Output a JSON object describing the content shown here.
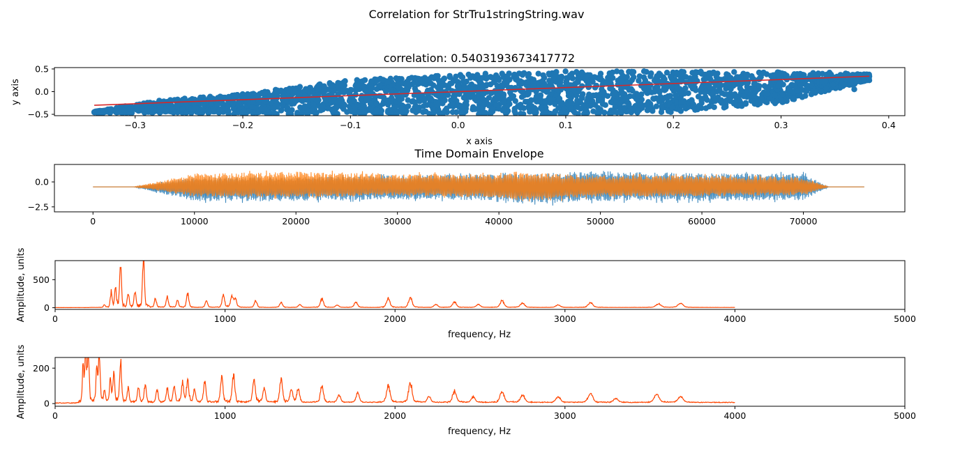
{
  "figure": {
    "title": "Correlation for StrTru1stringString.wav"
  },
  "chart_data": [
    {
      "type": "scatter",
      "title": "correlation: 0.5403193673417772",
      "xlabel": "x axis",
      "ylabel": "y axis",
      "xlim": [
        -0.375,
        0.415
      ],
      "ylim": [
        -0.53,
        0.53
      ],
      "xticks": [
        -0.3,
        -0.2,
        -0.1,
        0.0,
        0.1,
        0.2,
        0.3,
        0.4
      ],
      "xtick_labels": [
        "−0.3",
        "−0.2",
        "−0.1",
        "0.0",
        "0.1",
        "0.2",
        "0.3",
        "0.4"
      ],
      "yticks": [
        -0.5,
        0.0,
        0.5
      ],
      "ytick_labels": [
        "−0.5",
        "0.0",
        "0.5"
      ],
      "point_color": "#1f77b4",
      "fit_color": "#d62728",
      "fit_line": {
        "x": [
          -0.338,
          0.382
        ],
        "y": [
          -0.3,
          0.34
        ]
      },
      "cloud_band": {
        "x": [
          -0.338,
          -0.28,
          -0.2,
          -0.1,
          0.0,
          0.1,
          0.2,
          0.3,
          0.382
        ],
        "lo": [
          -0.47,
          -0.47,
          -0.5,
          -0.5,
          -0.5,
          -0.5,
          -0.45,
          -0.25,
          0.25
        ],
        "hi": [
          -0.44,
          -0.2,
          -0.05,
          0.25,
          0.38,
          0.45,
          0.45,
          0.43,
          0.38
        ]
      },
      "outliers": [
        [
          -0.338,
          -0.45
        ],
        [
          -0.33,
          -0.45
        ],
        [
          -0.31,
          -0.42
        ],
        [
          -0.305,
          -0.38
        ],
        [
          0.31,
          0.15
        ],
        [
          0.32,
          0.32
        ],
        [
          0.33,
          0.38
        ],
        [
          0.345,
          0.42
        ],
        [
          0.36,
          0.4
        ],
        [
          0.365,
          0.2
        ],
        [
          0.368,
          0.05
        ],
        [
          0.382,
          0.34
        ],
        [
          0.338,
          0.22
        ],
        [
          0.3,
          0.4
        ]
      ]
    },
    {
      "type": "line",
      "title": "Time Domain Envelope",
      "xlabel": "",
      "ylabel": "",
      "xlim": [
        -3800,
        80000
      ],
      "ylim": [
        -3.0,
        1.75
      ],
      "xticks": [
        0,
        10000,
        20000,
        30000,
        40000,
        50000,
        60000,
        70000
      ],
      "xtick_labels": [
        "0",
        "10000",
        "20000",
        "30000",
        "40000",
        "50000",
        "60000",
        "70000"
      ],
      "yticks": [
        0.0,
        -2.5
      ],
      "ytick_labels": [
        "0.0",
        "−2.5"
      ],
      "signal_start": 4000,
      "signal_end": 72500,
      "x_end": 76000,
      "baseline": -0.5,
      "series": [
        {
          "color": "#1f77b4",
          "envelope": {
            "x": [
              4000,
              10000,
              20000,
              30000,
              40000,
              43000,
              50000,
              60000,
              70000,
              72500
            ],
            "hi": [
              -0.5,
              0.6,
              0.6,
              0.8,
              0.9,
              1.0,
              1.3,
              1.0,
              1.0,
              -0.5
            ],
            "lo": [
              -0.5,
              -2.1,
              -2.1,
              -1.9,
              -2.0,
              -2.5,
              -2.1,
              -2.1,
              -2.0,
              -0.5
            ]
          }
        },
        {
          "color": "#ff7f0e",
          "envelope": {
            "x": [
              4000,
              10000,
              20000,
              30000,
              40000,
              43000,
              50000,
              60000,
              70000,
              72500
            ],
            "hi": [
              -0.5,
              1.0,
              1.2,
              1.0,
              0.9,
              1.1,
              0.8,
              0.8,
              0.6,
              -0.5
            ],
            "lo": [
              -0.5,
              -1.6,
              -1.7,
              -1.5,
              -1.7,
              -2.2,
              -1.6,
              -1.6,
              -1.4,
              -0.5
            ]
          }
        }
      ]
    },
    {
      "type": "line",
      "title": "",
      "xlabel": "frequency, Hz",
      "ylabel": "Amplitude, units",
      "xlim": [
        0,
        5000
      ],
      "ylim": [
        -30,
        840
      ],
      "xticks": [
        0,
        1000,
        2000,
        3000,
        4000,
        5000
      ],
      "xtick_labels": [
        "0",
        "1000",
        "2000",
        "3000",
        "4000",
        "5000"
      ],
      "yticks": [
        0,
        500
      ],
      "ytick_labels": [
        "0",
        "500"
      ],
      "color": "#ff4500",
      "x_max": 4000,
      "noise": 3,
      "peaks": [
        [
          290,
          40
        ],
        [
          330,
          250
        ],
        [
          355,
          310
        ],
        [
          385,
          700
        ],
        [
          430,
          220
        ],
        [
          470,
          270
        ],
        [
          520,
          800
        ],
        [
          590,
          150
        ],
        [
          660,
          180
        ],
        [
          720,
          120
        ],
        [
          780,
          230
        ],
        [
          890,
          120
        ],
        [
          990,
          200
        ],
        [
          1040,
          180
        ],
        [
          1060,
          160
        ],
        [
          1180,
          110
        ],
        [
          1330,
          80
        ],
        [
          1440,
          50
        ],
        [
          1570,
          140
        ],
        [
          1660,
          40
        ],
        [
          1770,
          90
        ],
        [
          1960,
          150
        ],
        [
          2090,
          160
        ],
        [
          2240,
          50
        ],
        [
          2350,
          90
        ],
        [
          2490,
          50
        ],
        [
          2630,
          110
        ],
        [
          2750,
          70
        ],
        [
          2960,
          40
        ],
        [
          3150,
          80
        ],
        [
          3550,
          60
        ],
        [
          3680,
          70
        ]
      ]
    },
    {
      "type": "line",
      "title": "",
      "xlabel": "frequency, Hz",
      "ylabel": "Amplitude, units",
      "xlim": [
        0,
        5000
      ],
      "ylim": [
        -15,
        260
      ],
      "xticks": [
        0,
        1000,
        2000,
        3000,
        4000,
        5000
      ],
      "xtick_labels": [
        "0",
        "1000",
        "2000",
        "3000",
        "4000",
        "5000"
      ],
      "yticks": [
        0,
        200
      ],
      "ytick_labels": [
        "0",
        "200"
      ],
      "color": "#ff4500",
      "x_max": 4000,
      "noise": 4,
      "peaks": [
        [
          165,
          200
        ],
        [
          180,
          240
        ],
        [
          195,
          250
        ],
        [
          245,
          170
        ],
        [
          260,
          250
        ],
        [
          290,
          60
        ],
        [
          325,
          120
        ],
        [
          345,
          150
        ],
        [
          385,
          220
        ],
        [
          430,
          80
        ],
        [
          490,
          80
        ],
        [
          530,
          100
        ],
        [
          600,
          70
        ],
        [
          660,
          70
        ],
        [
          700,
          90
        ],
        [
          750,
          100
        ],
        [
          780,
          120
        ],
        [
          820,
          60
        ],
        [
          880,
          110
        ],
        [
          980,
          130
        ],
        [
          1050,
          150
        ],
        [
          1170,
          120
        ],
        [
          1230,
          70
        ],
        [
          1330,
          120
        ],
        [
          1390,
          60
        ],
        [
          1430,
          70
        ],
        [
          1570,
          90
        ],
        [
          1670,
          40
        ],
        [
          1780,
          50
        ],
        [
          1960,
          90
        ],
        [
          2090,
          100
        ],
        [
          2200,
          30
        ],
        [
          2350,
          60
        ],
        [
          2460,
          30
        ],
        [
          2630,
          60
        ],
        [
          2750,
          40
        ],
        [
          2960,
          30
        ],
        [
          3150,
          50
        ],
        [
          3300,
          20
        ],
        [
          3540,
          40
        ],
        [
          3680,
          30
        ]
      ]
    }
  ]
}
